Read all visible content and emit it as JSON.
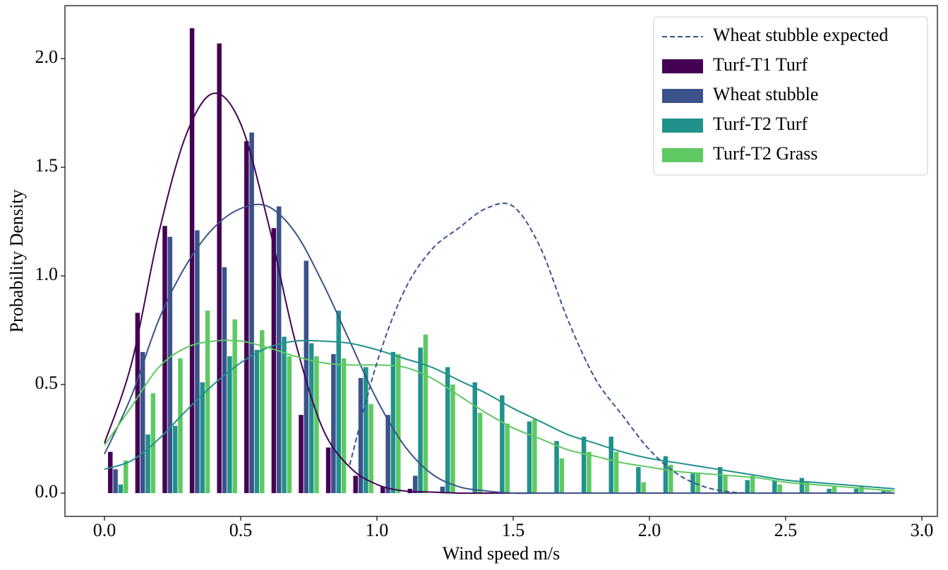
{
  "chart_data": {
    "type": "histogram",
    "xlabel": "Wind speed m/s",
    "ylabel": "Probability Density",
    "xlim": [
      -0.145,
      3.057
    ],
    "ylim": [
      -0.107,
      2.244
    ],
    "xticks": [
      {
        "value": 0,
        "label": "0.0"
      },
      {
        "value": 0.5,
        "label": "0.5"
      },
      {
        "value": 1,
        "label": "1.0"
      },
      {
        "value": 1.5,
        "label": "1.5"
      },
      {
        "value": 2,
        "label": "2.0"
      },
      {
        "value": 2.5,
        "label": "2.5"
      },
      {
        "value": 3,
        "label": "3.0"
      }
    ],
    "yticks": [
      {
        "value": 0,
        "label": "0.0"
      },
      {
        "value": 0.5,
        "label": "0.5"
      },
      {
        "value": 1,
        "label": "1.0"
      },
      {
        "value": 1.5,
        "label": "1.5"
      },
      {
        "value": 2,
        "label": "2.0"
      }
    ],
    "grid": false,
    "legend": "upper right",
    "bins": [
      0,
      0.1,
      0.2,
      0.3,
      0.4,
      0.5,
      0.6,
      0.7,
      0.8,
      0.9,
      1.0,
      1.1,
      1.2,
      1.3,
      1.4,
      1.5,
      1.6,
      1.7,
      1.8,
      1.9,
      2.0,
      2.1,
      2.2,
      2.3,
      2.4,
      2.5,
      2.6,
      2.7,
      2.8,
      2.9
    ],
    "series": [
      {
        "name": "Turf-T1 Turf",
        "color": "#440154",
        "values": [
          0.19,
          0.83,
          1.23,
          2.14,
          2.07,
          1.62,
          1.22,
          0.36,
          0.21,
          0.08,
          0.03,
          0.02,
          0,
          0,
          0,
          0,
          0,
          0,
          0,
          0,
          0,
          0,
          0,
          0,
          0,
          0,
          0,
          0,
          0
        ]
      },
      {
        "name": "Wheat stubble",
        "color": "#3b528b",
        "values": [
          0.11,
          0.65,
          1.18,
          1.21,
          1.04,
          1.66,
          1.32,
          1.07,
          0.64,
          0.53,
          0.36,
          0.08,
          0.03,
          0,
          0,
          0,
          0,
          0,
          0,
          0,
          0,
          0,
          0,
          0,
          0,
          0,
          0,
          0,
          0
        ]
      },
      {
        "name": "Turf-T2 Turf",
        "color": "#21918c",
        "values": [
          0.04,
          0.27,
          0.31,
          0.51,
          0.63,
          0.66,
          0.72,
          0.69,
          0.84,
          0.58,
          0.65,
          0.67,
          0.58,
          0.51,
          0.45,
          0.33,
          0.24,
          0.26,
          0.26,
          0.12,
          0.17,
          0.09,
          0.12,
          0.06,
          0.06,
          0.07,
          0.02,
          0.02,
          0.01
        ]
      },
      {
        "name": "Turf-T2 Grass",
        "color": "#5ec962",
        "values": [
          0.15,
          0.46,
          0.62,
          0.84,
          0.8,
          0.75,
          0.63,
          0.63,
          0.62,
          0.41,
          0.64,
          0.73,
          0.5,
          0.37,
          0.32,
          0.34,
          0.16,
          0.19,
          0.19,
          0.05,
          0.13,
          0.09,
          0.08,
          0.08,
          0.04,
          0.05,
          0.03,
          0.03,
          0.01
        ]
      }
    ],
    "curves": [
      {
        "color": "#440154",
        "style": "solid",
        "x": [
          0,
          0.1,
          0.2,
          0.3,
          0.4,
          0.5,
          0.6,
          0.7,
          0.8,
          0.9,
          1.0,
          1.1,
          1.2,
          1.3,
          1.4,
          1.5,
          1.6,
          1.7,
          1.8,
          1.9,
          2.0,
          2.1,
          2.2,
          2.3,
          2.4,
          2.5,
          2.6,
          2.7,
          2.8,
          2.9
        ],
        "values": [
          0.23,
          0.6,
          1.2,
          1.65,
          1.84,
          1.7,
          1.25,
          0.7,
          0.3,
          0.12,
          0.04,
          0.01,
          0.005,
          0,
          0,
          0,
          0,
          0,
          0,
          0,
          0,
          0,
          0,
          0,
          0,
          0,
          0,
          0,
          0,
          0
        ]
      },
      {
        "color": "#3b528b",
        "style": "solid",
        "x": [
          0,
          0.1,
          0.2,
          0.3,
          0.4,
          0.5,
          0.6,
          0.7,
          0.8,
          0.9,
          1.0,
          1.1,
          1.2,
          1.3,
          1.4,
          1.5,
          1.6,
          1.7,
          1.8,
          1.9,
          2.0,
          2.1,
          2.2,
          2.3,
          2.4,
          2.5,
          2.6,
          2.7,
          2.8,
          2.9
        ],
        "values": [
          0.18,
          0.45,
          0.8,
          1.05,
          1.22,
          1.31,
          1.32,
          1.2,
          0.97,
          0.7,
          0.43,
          0.22,
          0.09,
          0.03,
          0.01,
          0,
          0,
          0,
          0,
          0,
          0,
          0,
          0,
          0,
          0,
          0,
          0,
          0,
          0,
          0
        ]
      },
      {
        "color": "#21918c",
        "style": "solid",
        "x": [
          0,
          0.1,
          0.2,
          0.3,
          0.4,
          0.5,
          0.6,
          0.7,
          0.8,
          0.9,
          1.0,
          1.1,
          1.2,
          1.3,
          1.4,
          1.5,
          1.6,
          1.7,
          1.8,
          1.9,
          2.0,
          2.1,
          2.2,
          2.3,
          2.4,
          2.5,
          2.6,
          2.7,
          2.8,
          2.9
        ],
        "values": [
          0.11,
          0.15,
          0.25,
          0.38,
          0.5,
          0.6,
          0.67,
          0.7,
          0.7,
          0.69,
          0.66,
          0.62,
          0.58,
          0.52,
          0.46,
          0.39,
          0.33,
          0.27,
          0.23,
          0.19,
          0.16,
          0.14,
          0.12,
          0.1,
          0.08,
          0.06,
          0.05,
          0.04,
          0.03,
          0.02
        ]
      },
      {
        "color": "#5ec962",
        "style": "solid",
        "x": [
          0,
          0.1,
          0.2,
          0.3,
          0.4,
          0.5,
          0.6,
          0.7,
          0.8,
          0.9,
          1.0,
          1.1,
          1.2,
          1.3,
          1.4,
          1.5,
          1.6,
          1.7,
          1.8,
          1.9,
          2.0,
          2.1,
          2.2,
          2.3,
          2.4,
          2.5,
          2.6,
          2.7,
          2.8,
          2.9
        ],
        "values": [
          0.22,
          0.4,
          0.58,
          0.67,
          0.7,
          0.7,
          0.67,
          0.63,
          0.6,
          0.59,
          0.59,
          0.58,
          0.53,
          0.45,
          0.37,
          0.3,
          0.25,
          0.2,
          0.17,
          0.14,
          0.12,
          0.1,
          0.09,
          0.08,
          0.07,
          0.05,
          0.04,
          0.03,
          0.02,
          0.01
        ]
      },
      {
        "name": "Wheat stubble expected",
        "color": "#3b528b",
        "style": "dashed",
        "x": [
          0.9,
          1.0,
          1.1,
          1.2,
          1.3,
          1.4,
          1.5,
          1.6,
          1.7,
          1.8,
          1.9,
          2.0,
          2.1,
          2.2,
          2.3,
          2.4,
          2.5,
          2.6,
          2.7,
          2.8,
          2.9
        ],
        "values": [
          0.13,
          0.6,
          0.93,
          1.12,
          1.22,
          1.31,
          1.32,
          1.13,
          0.8,
          0.53,
          0.36,
          0.2,
          0.09,
          0.03,
          0.005,
          0,
          0,
          0,
          0,
          0,
          0
        ]
      }
    ]
  }
}
